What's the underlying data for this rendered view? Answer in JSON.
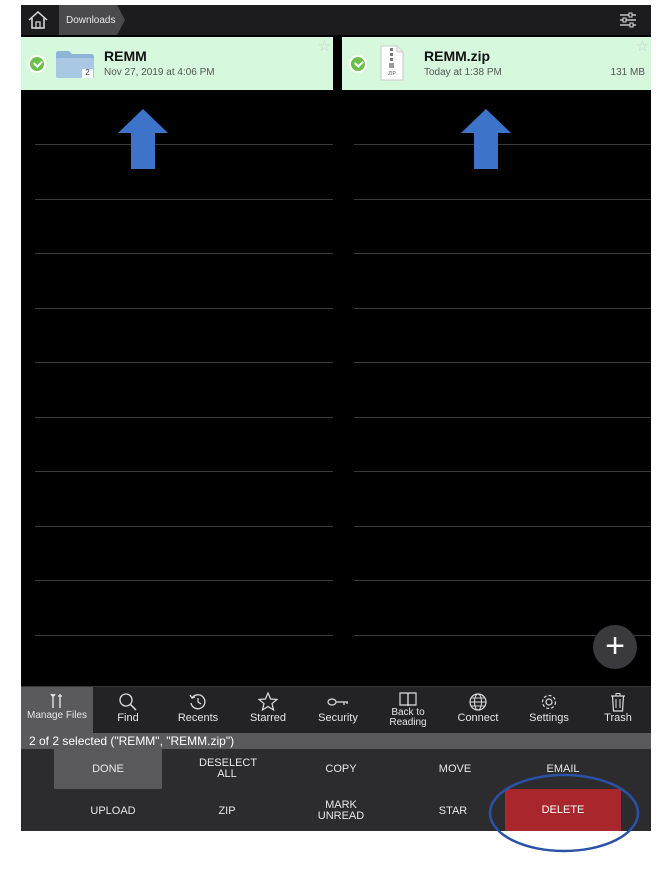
{
  "topbar": {
    "home_icon": "home-icon",
    "breadcrumb": "Downloads",
    "filter_icon": "sliders-icon"
  },
  "files": [
    {
      "name": "REMM",
      "date": "Nov 27, 2019 at 4:06 PM",
      "size": "",
      "icon": "folder-icon",
      "badge": "2",
      "selected": true
    },
    {
      "name": "REMM.zip",
      "date": "Today at 1:38 PM",
      "size": "131 MB",
      "icon": "zip-file-icon",
      "badge_text": "ZIP",
      "selected": true
    }
  ],
  "annotations": {
    "arrow_color": "#3d74c9",
    "circle_color": "#2a52a8"
  },
  "tabs": [
    {
      "label": "Manage Files",
      "icon": "tools-icon",
      "active": true
    },
    {
      "label": "Find",
      "icon": "search-icon"
    },
    {
      "label": "Recents",
      "icon": "history-icon"
    },
    {
      "label": "Starred",
      "icon": "star-icon"
    },
    {
      "label": "Security",
      "icon": "key-icon"
    },
    {
      "label": "Back to Reading",
      "icon": "book-icon"
    },
    {
      "label": "Connect",
      "icon": "globe-icon"
    },
    {
      "label": "Settings",
      "icon": "gear-icon"
    },
    {
      "label": "Trash",
      "icon": "trash-icon"
    }
  ],
  "status_text": "2 of 2 selected (\"REMM\", \"REMM.zip\")",
  "actions": {
    "done": "DONE",
    "deselect_all": "DESELECT ALL",
    "copy": "COPY",
    "move": "MOVE",
    "email": "EMAIL",
    "upload": "UPLOAD",
    "zip": "ZIP",
    "mark_unread": "MARK UNREAD",
    "star": "STAR",
    "delete": "DELETE"
  },
  "colors": {
    "selected_tile": "#d6f8dc",
    "delete": "#a8272d",
    "check": "#6cc04a"
  }
}
